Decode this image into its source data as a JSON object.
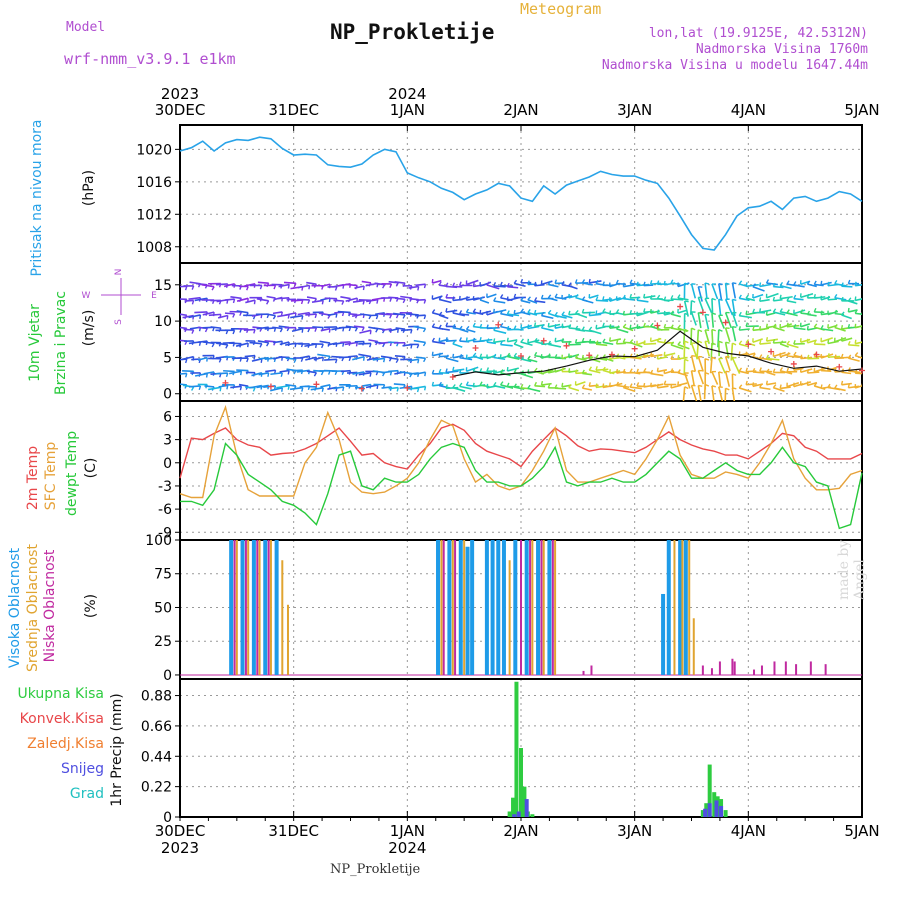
{
  "header": {
    "model_label": "Model",
    "model_name": "wrf-nmm_v3.9.1 e1km",
    "chart_kind": "Meteogram",
    "station_title": "NP_Prokletije",
    "coords": "lon,lat (19.9125E, 42.5312N)",
    "elevation": "Nadmorska Visina 1760m",
    "model_elevation": "Nadmorska Visina u modelu 1647.44m",
    "credit": "made by Angel",
    "footer": "NP_Prokletije"
  },
  "time_axis": {
    "ticks": [
      "30DEC",
      "31DEC",
      "1JAN",
      "2JAN",
      "3JAN",
      "4JAN",
      "5JAN"
    ],
    "year_start": "2023",
    "year_mid": "2024"
  },
  "labels": {
    "pressure": [
      "Pritisak na nivou mora",
      "(hPa)"
    ],
    "wind": [
      "10m Vjetar",
      "Brzina i Pravac",
      "(m/s)"
    ],
    "wind_rose": {
      "n": "N",
      "s": "S",
      "w": "W",
      "e": "E"
    },
    "temp": [
      "2m Temp",
      "SFC Temp",
      "dewpt Temp",
      "(C)"
    ],
    "cloud": [
      "Visoka Oblacnost",
      "Srednja Oblacnost",
      "Niska Oblacnost",
      "(%)"
    ],
    "precip_legend": [
      "Ukupna Kisa",
      "Konvek.Kisa",
      "Zaledj.Kisa",
      "Snijeg",
      "Grad"
    ],
    "precip_unit": "1hr Precip (mm)"
  },
  "colors": {
    "pressure": "#29a3e8",
    "temp2m": "#e8474a",
    "sfc": "#e6a23a",
    "dewpt": "#27c93a",
    "cloud_high": "#1e9be8",
    "cloud_mid": "#e0a430",
    "cloud_low": "#c02aa0",
    "rain_total": "#2ecc40",
    "rain_conv": "#e8474a",
    "rain_frz": "#f07f30",
    "snow": "#4f4fe0",
    "hail": "#20c0c0",
    "wind_gust": "#e8474a",
    "wind_speed": "#111111"
  },
  "chart_data": [
    {
      "type": "line",
      "id": "pressure",
      "xlabel": "",
      "ylabel": "Pritisak na nivou mora (hPa)",
      "ylim": [
        1006,
        1023
      ],
      "yticks": [
        1008,
        1012,
        1016,
        1020
      ],
      "x_days": [
        0,
        0.1,
        0.2,
        0.3,
        0.4,
        0.5,
        0.6,
        0.7,
        0.8,
        0.9,
        1.0,
        1.1,
        1.2,
        1.3,
        1.4,
        1.5,
        1.6,
        1.7,
        1.8,
        1.9,
        2.0,
        2.1,
        2.2,
        2.3,
        2.4,
        2.5,
        2.6,
        2.7,
        2.8,
        2.9,
        3.0,
        3.1,
        3.2,
        3.3,
        3.4,
        3.5,
        3.6,
        3.7,
        3.8,
        3.9,
        4.0,
        4.1,
        4.2,
        4.3,
        4.4,
        4.5,
        4.6,
        4.7,
        4.8,
        4.9,
        5.0,
        5.1,
        5.2,
        5.3,
        5.4,
        5.5,
        5.6,
        5.7,
        5.8,
        5.9,
        6.0
      ],
      "values": [
        1019.8,
        1020.2,
        1021,
        1019.8,
        1020.8,
        1021.2,
        1021.1,
        1021.5,
        1021.3,
        1020.1,
        1019.3,
        1019.4,
        1019.3,
        1018.1,
        1017.9,
        1017.8,
        1018.2,
        1019.3,
        1020.0,
        1019.7,
        1017.1,
        1016.5,
        1016.0,
        1015.2,
        1014.7,
        1013.8,
        1014.5,
        1015.0,
        1015.8,
        1015.5,
        1014.0,
        1013.6,
        1015.5,
        1014.5,
        1015.6,
        1016.1,
        1016.6,
        1017.3,
        1016.9,
        1016.7,
        1016.7,
        1016.2,
        1015.8,
        1014.0,
        1011.8,
        1009.5,
        1007.8,
        1007.6,
        1009.5,
        1011.8,
        1012.8,
        1013.0,
        1013.6,
        1012.6,
        1014.0,
        1014.2,
        1013.6,
        1014.0,
        1014.8,
        1014.5,
        1013.6
      ]
    },
    {
      "type": "line",
      "id": "wind",
      "xlabel": "",
      "ylabel": "10m Vjetar Brzina i Pravac (m/s)",
      "ylim": [
        -1,
        18
      ],
      "yticks": [
        0,
        5,
        10,
        15
      ],
      "series": [
        {
          "name": "",
          "x_days": [
            2.4,
            2.6,
            2.8,
            3.0,
            3.2,
            3.4,
            3.6,
            3.8,
            4.0,
            4.2,
            4.4,
            4.6,
            4.8,
            5.0,
            5.2,
            5.4,
            5.6,
            5.8,
            6.0
          ],
          "values": [
            2.4,
            3.0,
            2.6,
            2.9,
            3.1,
            3.8,
            4.6,
            5.2,
            5.1,
            6.0,
            8.6,
            6.4,
            5.6,
            5.2,
            4.2,
            3.5,
            3.8,
            3.1,
            3.4
          ]
        },
        {
          "name": "",
          "x_days": [
            0.4,
            0.8,
            1.2,
            1.6,
            2.0,
            2.4,
            2.6,
            2.8,
            3.0,
            3.2,
            3.4,
            3.6,
            3.8,
            4.0,
            4.2,
            4.4,
            4.6,
            4.8,
            5.0,
            5.2,
            5.4,
            5.6,
            5.8,
            6.0
          ],
          "values": [
            1.5,
            1.0,
            1.3,
            0.7,
            0.8,
            2.3,
            6.3,
            9.5,
            5.2,
            7.3,
            6.6,
            5.3,
            5.4,
            6.2,
            9.4,
            12.0,
            11.2,
            9.8,
            6.8,
            5.8,
            4.1,
            5.4,
            3.7,
            3.2
          ]
        }
      ]
    },
    {
      "type": "line",
      "id": "temperature",
      "xlabel": "",
      "ylabel": "Temp (C)",
      "ylim": [
        -10,
        8
      ],
      "yticks": [
        -9,
        -6,
        -3,
        0,
        3,
        6
      ],
      "x_days": [
        0,
        0.1,
        0.2,
        0.3,
        0.4,
        0.5,
        0.6,
        0.7,
        0.8,
        0.9,
        1.0,
        1.1,
        1.2,
        1.3,
        1.4,
        1.5,
        1.6,
        1.7,
        1.8,
        1.9,
        2.0,
        2.1,
        2.2,
        2.3,
        2.4,
        2.5,
        2.6,
        2.7,
        2.8,
        2.9,
        3.0,
        3.1,
        3.2,
        3.3,
        3.4,
        3.5,
        3.6,
        3.7,
        3.8,
        3.9,
        4.0,
        4.1,
        4.2,
        4.3,
        4.4,
        4.5,
        4.6,
        4.7,
        4.8,
        4.9,
        5.0,
        5.1,
        5.2,
        5.3,
        5.4,
        5.5,
        5.6,
        5.7,
        5.8,
        5.9,
        6.0
      ],
      "series": [
        {
          "name": "2m Temp",
          "values": [
            -2,
            3.2,
            3.0,
            3.8,
            4.5,
            3.0,
            2.3,
            2.0,
            1.0,
            1.2,
            1.3,
            1.8,
            2.5,
            3.5,
            4.5,
            2.8,
            1.0,
            1.2,
            0,
            -0.5,
            -0.8,
            1.0,
            2.5,
            4.5,
            5.0,
            4.2,
            2.5,
            1.5,
            1.0,
            0.5,
            -0.5,
            1.5,
            3.0,
            4.5,
            3.5,
            2.2,
            1.5,
            1.8,
            1.7,
            1.5,
            1.3,
            2.0,
            3.0,
            4.0,
            3.0,
            2.3,
            1.8,
            1.5,
            1.0,
            1.0,
            0.5,
            1.5,
            2.5,
            3.8,
            3.5,
            2.0,
            1.5,
            0.5,
            0.5,
            0.5,
            1.2
          ]
        },
        {
          "name": "SFC Temp",
          "values": [
            -4,
            -4.5,
            -4.5,
            3.5,
            7.2,
            1.0,
            -3.5,
            -4.3,
            -4.3,
            -4.3,
            -4.3,
            0,
            2.0,
            6.5,
            3.0,
            -2.5,
            -3.8,
            -4.0,
            -3.8,
            -3.0,
            -2.0,
            0,
            3.0,
            5.5,
            4.8,
            0.5,
            -2.5,
            -1.5,
            -3.0,
            -3.5,
            -3.0,
            -1.0,
            1.5,
            4.5,
            -1.0,
            -2.5,
            -2.5,
            -2.0,
            -1.5,
            -1.0,
            -1.5,
            0.5,
            3.0,
            6.0,
            1.0,
            -1.5,
            -2.0,
            -2.0,
            -1.2,
            -1.5,
            -2.0,
            0,
            2.5,
            5.5,
            0.5,
            -2.0,
            -3.5,
            -3.5,
            -3.3,
            -1.5,
            -1.0
          ]
        },
        {
          "name": "dewpt Temp",
          "values": [
            -5,
            -5,
            -5.5,
            -3.5,
            2.5,
            1.0,
            -1.5,
            -2.5,
            -3.5,
            -5.0,
            -5.5,
            -6.5,
            -8.0,
            -4.0,
            1.0,
            1.5,
            -3.0,
            -3.5,
            -2.0,
            -2.5,
            -2.5,
            -1.5,
            0.5,
            2.0,
            2.5,
            2.0,
            -1.0,
            -2.5,
            -2.5,
            -3.0,
            -3.0,
            -2.0,
            -0.5,
            2.0,
            -2.5,
            -3.0,
            -2.5,
            -2.5,
            -2.0,
            -2.5,
            -2.5,
            -1.5,
            0,
            1.5,
            0.5,
            -2.0,
            -2.0,
            -1.0,
            0,
            -1.0,
            -1.5,
            -1.5,
            0,
            2.0,
            0,
            -0.5,
            -2.5,
            -3.0,
            -8.5,
            -8.0,
            -1.3
          ]
        }
      ]
    },
    {
      "type": "bar",
      "id": "cloud",
      "xlabel": "",
      "ylabel": "Oblacnost (%)",
      "ylim": [
        -3,
        100
      ],
      "yticks": [
        0,
        25,
        50,
        75,
        100
      ],
      "series": [
        {
          "name": "Visoka Oblacnost",
          "x_days": [
            0.45,
            0.55,
            0.65,
            0.75,
            0.85,
            2.27,
            2.37,
            2.47,
            2.53,
            2.57,
            2.7,
            2.75,
            2.8,
            2.85,
            2.95,
            3.05,
            3.15,
            3.25,
            4.25,
            4.3,
            4.4,
            4.45
          ],
          "values": [
            100,
            100,
            100,
            100,
            100,
            100,
            100,
            100,
            95,
            100,
            100,
            100,
            100,
            100,
            100,
            100,
            100,
            100,
            60,
            100,
            100,
            100
          ]
        },
        {
          "name": "Srednja Oblacnost",
          "x_days": [
            0.5,
            0.6,
            0.7,
            0.8,
            0.9,
            0.95,
            2.3,
            2.4,
            2.5,
            2.9,
            3.0,
            3.1,
            3.2,
            3.3,
            4.35,
            4.42,
            4.48,
            4.52
          ],
          "values": [
            100,
            100,
            100,
            100,
            85,
            52,
            100,
            100,
            100,
            85,
            100,
            100,
            100,
            100,
            100,
            100,
            100,
            42
          ]
        },
        {
          "name": "Niska Oblacnost",
          "x_days": [
            0.48,
            0.58,
            0.68,
            0.78,
            2.32,
            2.42,
            3.0,
            3.08,
            3.18,
            3.28,
            3.55,
            3.62,
            4.6,
            4.68,
            4.75,
            4.86,
            4.88,
            5.05,
            5.12,
            5.23,
            5.33,
            5.42,
            5.55,
            5.68
          ],
          "values": [
            100,
            100,
            100,
            100,
            100,
            100,
            100,
            100,
            100,
            100,
            3,
            7,
            7,
            5,
            10,
            12,
            10,
            4,
            7,
            10,
            10,
            8,
            10,
            8
          ]
        }
      ]
    },
    {
      "type": "bar",
      "id": "precip",
      "xlabel": "",
      "ylabel": "1hr Precip (mm)",
      "ylim": [
        0,
        1.0
      ],
      "yticks": [
        0,
        0.22,
        0.44,
        0.66,
        0.88
      ],
      "series": [
        {
          "name": "Ukupna Kisa",
          "x_days": [
            2.9,
            2.93,
            2.96,
            3.0,
            3.03,
            3.06,
            3.1,
            4.6,
            4.63,
            4.66,
            4.7,
            4.73,
            4.76,
            4.8
          ],
          "values": [
            0.04,
            0.14,
            0.98,
            0.5,
            0.22,
            0.04,
            0.02,
            0.05,
            0.1,
            0.38,
            0.18,
            0.15,
            0.13,
            0.05
          ]
        },
        {
          "name": "Snijeg",
          "x_days": [
            2.94,
            2.98,
            3.05,
            4.62,
            4.66,
            4.72,
            4.76
          ],
          "values": [
            0.02,
            0.04,
            0.13,
            0.06,
            0.1,
            0.12,
            0.08
          ]
        }
      ]
    }
  ]
}
